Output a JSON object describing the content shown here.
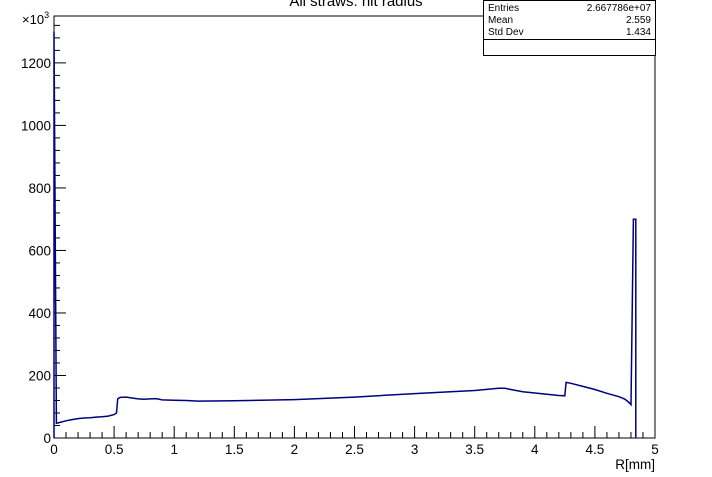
{
  "chart_data": {
    "type": "line",
    "title": "All straws: hit radius",
    "xlabel": "R[mm]",
    "ylabel": "",
    "y_exponent_label": "×10",
    "y_exponent_power": "3",
    "xlim": [
      0,
      5
    ],
    "ylim": [
      0,
      1350
    ],
    "x_ticks": [
      0,
      0.5,
      1,
      1.5,
      2,
      2.5,
      3,
      3.5,
      4,
      4.5,
      5
    ],
    "x_tick_labels": [
      "0",
      "0.5",
      "1",
      "1.5",
      "2",
      "2.5",
      "3",
      "3.5",
      "4",
      "4.5",
      "5"
    ],
    "y_ticks": [
      0,
      200,
      400,
      600,
      800,
      1000,
      1200
    ],
    "y_tick_labels": [
      "0",
      "200",
      "400",
      "600",
      "800",
      "1000",
      "1200"
    ],
    "line_color": "#000080",
    "series": [
      {
        "x": [
          0,
          0.02,
          0.05,
          0.1,
          0.15,
          0.2,
          0.25,
          0.3,
          0.35,
          0.4,
          0.45,
          0.5,
          0.52,
          0.53,
          0.55,
          0.6,
          0.65,
          0.7,
          0.75,
          0.8,
          0.85,
          0.9,
          1.0,
          1.1,
          1.2,
          1.5,
          2.0,
          2.5,
          3.0,
          3.5,
          3.7,
          3.75,
          3.8,
          3.9,
          4.0,
          4.1,
          4.2,
          4.25,
          4.26,
          4.3,
          4.4,
          4.5,
          4.6,
          4.7,
          4.75,
          4.78,
          4.8,
          4.82
        ],
        "y": [
          1300,
          47,
          50,
          55,
          59,
          62,
          64,
          65,
          67,
          68,
          70,
          75,
          80,
          125,
          130,
          131,
          128,
          125,
          124,
          125,
          126,
          122,
          121,
          120,
          118,
          119,
          123,
          131,
          142,
          152,
          159,
          159,
          155,
          148,
          144,
          140,
          136,
          135,
          178,
          175,
          165,
          155,
          143,
          132,
          124,
          115,
          107,
          700
        ]
      }
    ]
  }
}
